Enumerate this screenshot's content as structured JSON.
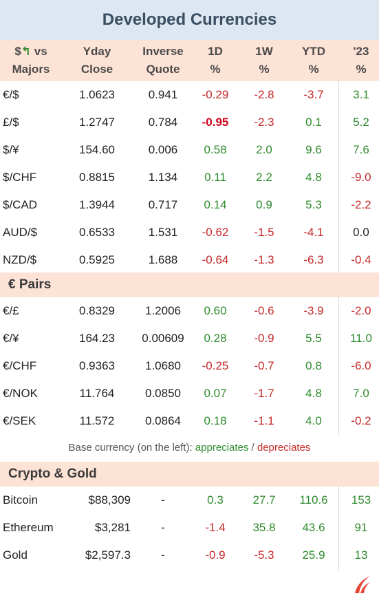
{
  "title": "Developed Currencies",
  "headers": {
    "pair_line1": "$",
    "pair_arrow": "↰",
    "pair_line1b": " vs",
    "pair_line2": "Majors",
    "yday_1": "Yday",
    "yday_2": "Close",
    "inv_1": "Inverse",
    "inv_2": "Quote",
    "d1_1": "1D",
    "d1_2": "%",
    "w1_1": "1W",
    "w1_2": "%",
    "ytd_1": "YTD",
    "ytd_2": "%",
    "y23_1": "'23",
    "y23_2": "%"
  },
  "majors": [
    {
      "pair": "€/$",
      "close": "1.0623",
      "inverse": "0.941",
      "d1": "-0.29",
      "w1": "-2.8",
      "ytd": "-3.7",
      "y23": "3.1"
    },
    {
      "pair": "£/$",
      "close": "1.2747",
      "inverse": "0.784",
      "d1": "-0.95",
      "w1": "-2.3",
      "ytd": "0.1",
      "y23": "5.2"
    },
    {
      "pair": "$/¥",
      "close": "154.60",
      "inverse": "0.006",
      "d1": "0.58",
      "w1": "2.0",
      "ytd": "9.6",
      "y23": "7.6"
    },
    {
      "pair": "$/CHF",
      "close": "0.8815",
      "inverse": "1.134",
      "d1": "0.11",
      "w1": "2.2",
      "ytd": "4.8",
      "y23": "-9.0"
    },
    {
      "pair": "$/CAD",
      "close": "1.3944",
      "inverse": "0.717",
      "d1": "0.14",
      "w1": "0.9",
      "ytd": "5.3",
      "y23": "-2.2"
    },
    {
      "pair": "AUD/$",
      "close": "0.6533",
      "inverse": "1.531",
      "d1": "-0.62",
      "w1": "-1.5",
      "ytd": "-4.1",
      "y23": "0.0"
    },
    {
      "pair": "NZD/$",
      "close": "0.5925",
      "inverse": "1.688",
      "d1": "-0.64",
      "w1": "-1.3",
      "ytd": "-6.3",
      "y23": "-0.4"
    }
  ],
  "euro_section_title": "€ Pairs",
  "euro_pairs": [
    {
      "pair": "€/£",
      "close": "0.8329",
      "inverse": "1.2006",
      "d1": "0.60",
      "w1": "-0.6",
      "ytd": "-3.9",
      "y23": "-2.0"
    },
    {
      "pair": "€/¥",
      "close": "164.23",
      "inverse": "0.00609",
      "d1": "0.28",
      "w1": "-0.9",
      "ytd": "5.5",
      "y23": "11.0"
    },
    {
      "pair": "€/CHF",
      "close": "0.9363",
      "inverse": "1.0680",
      "d1": "-0.25",
      "w1": "-0.7",
      "ytd": "0.8",
      "y23": "-6.0"
    },
    {
      "pair": "€/NOK",
      "close": "11.764",
      "inverse": "0.0850",
      "d1": "0.07",
      "w1": "-1.7",
      "ytd": "4.8",
      "y23": "7.0"
    },
    {
      "pair": "€/SEK",
      "close": "11.572",
      "inverse": "0.0864",
      "d1": "0.18",
      "w1": "-1.1",
      "ytd": "4.0",
      "y23": "-0.2"
    }
  ],
  "note": {
    "prefix": "Base currency (on the left):  ",
    "appreciates": "appreciates",
    "sep": " / ",
    "depreciates": "depreciates"
  },
  "crypto_section_title": "Crypto & Gold",
  "crypto": [
    {
      "name": "Bitcoin",
      "close": "$88,309",
      "inverse": "-",
      "d1": "0.3",
      "w1": "27.7",
      "ytd": "110.6",
      "y23": "153"
    },
    {
      "name": "Ethereum",
      "close": "$3,281",
      "inverse": "-",
      "d1": "-1.4",
      "w1": "35.8",
      "ytd": "43.6",
      "y23": "91"
    },
    {
      "name": "Gold",
      "close": "$2,597.3",
      "inverse": "-",
      "d1": "-0.9",
      "w1": "-5.3",
      "ytd": "25.9",
      "y23": "13"
    }
  ],
  "colors": {
    "positive": "#2e8b2e",
    "negative": "#c62828",
    "highlight_negative": "#d0021b",
    "header_band": "#fde3d6",
    "title_band": "#dde7f1"
  },
  "logo_icon": "flame-logo-icon"
}
